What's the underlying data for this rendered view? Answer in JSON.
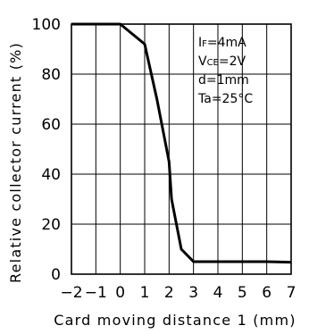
{
  "chart_data": {
    "type": "line",
    "xlabel": "Card moving distance 1 (mm)",
    "ylabel": "Relative collector current (%)",
    "xlim": [
      -2,
      7
    ],
    "ylim": [
      0,
      100
    ],
    "x_ticks": [
      "−2",
      "−1",
      "0",
      "1",
      "2",
      "3",
      "4",
      "5",
      "6",
      "7"
    ],
    "y_ticks": [
      "0",
      "20",
      "40",
      "60",
      "80",
      "100"
    ],
    "grid": true,
    "conditions": [
      "IF=4mA",
      "VCE=2V",
      "d=1mm",
      "Ta=25°C"
    ],
    "series": [
      {
        "x": [
          -2,
          -1,
          0,
          1,
          1.5,
          2,
          2.1,
          2.5,
          3,
          4,
          5,
          6,
          7
        ],
        "y": [
          100,
          100,
          100,
          92,
          70,
          45,
          30,
          10,
          5,
          5,
          5,
          5,
          4.8
        ]
      }
    ]
  }
}
